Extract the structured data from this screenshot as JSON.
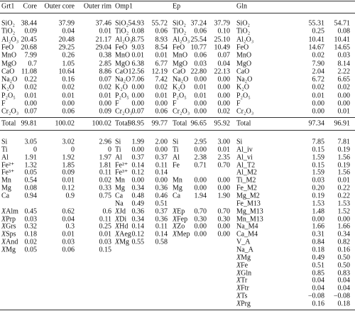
{
  "table": {
    "header": [
      "Grt1",
      "Core",
      "Outer core",
      "Outer rim",
      "Omp1",
      null,
      null,
      "Ep",
      null,
      null,
      "Gln",
      null,
      null
    ],
    "oxides": [
      [
        "SiO₂",
        "38.44",
        "37.99",
        "37.46",
        "SiO₂",
        "54.93",
        "55.72",
        "SiO₂",
        "37.24",
        "37.79",
        "SiO₂",
        "55.31",
        "54.71"
      ],
      [
        "TiO₂",
        "0.09",
        "0.04",
        "0.01",
        "TiO₂",
        "0.08",
        "0.06",
        "TiO₂",
        "0.06",
        "0.10",
        "TiO₂",
        "0.25",
        "0.08"
      ],
      [
        "Al₂O₃",
        "20.45",
        "20.48",
        "21.17",
        "Al₂O₃",
        "8.75",
        "8.93",
        "Al₂O₃",
        "25.54",
        "25.10",
        "Al₂O₃",
        "10.41",
        "10.41"
      ],
      [
        "FeO",
        "20.68",
        "29.25",
        "29.04",
        "FeO",
        "9.03",
        "8.54",
        "FeO",
        "10.77",
        "10.49",
        "FeO",
        "14.67",
        "14.65"
      ],
      [
        "MnO",
        "7.99",
        "0.26",
        "0.38",
        "MnO",
        "0.01",
        "0.01",
        "MnO",
        "0.06",
        "0.07",
        "MnO",
        "0.02",
        "0.03"
      ],
      [
        "MgO",
        "0.7",
        "1.05",
        "2.85",
        "MgO",
        "6.38",
        "6.77",
        "MgO",
        "0.03",
        "0.04",
        "MgO",
        "7.90",
        "8.14"
      ],
      [
        "CaO",
        "11.08",
        "10.64",
        "8.86",
        "CaO",
        "12.56",
        "12.19",
        "CaO",
        "22.80",
        "22.13",
        "CaO",
        "2.04",
        "2.22"
      ],
      [
        "Na₂O",
        "0.22",
        "0.16",
        "0.07",
        "Na₂O",
        "7.06",
        "7.42",
        "Na₂O",
        "0.00",
        "0.00",
        "Na₂O",
        "6.72",
        "6.65"
      ],
      [
        "K₂O",
        "0.02",
        "0.02",
        "0.02",
        "K₂O",
        "0.00",
        "0.02",
        "K₂O",
        "0.01",
        "0.00",
        "K₂O",
        "0.02",
        "0.02"
      ],
      [
        "P₂O₅",
        "0.01",
        "0.01",
        "0.01",
        "P₂O₅",
        "0.00",
        "0.01",
        "P₂O₅",
        "0.01",
        "0.00",
        "P₂O₅",
        "0.01",
        "0.00"
      ],
      [
        "F",
        "0.00",
        "0.00",
        "0.00",
        "F",
        "0.00",
        "0.00",
        "F",
        "0.00",
        "0.00",
        "F",
        "0.00",
        "0.00"
      ],
      [
        "Cr₂O₃",
        "0.07",
        "0.06",
        "0.09",
        "Cr₂O₃",
        "0.07",
        "0.06",
        "Cr₂O₃",
        "0.00",
        "0.02",
        "Cr₂O₃",
        "0.00",
        "0.01"
      ]
    ],
    "total": [
      "Total",
      "99.81",
      "100.02",
      "100.02",
      "Total",
      "98.95",
      "99.77",
      "Total",
      "96.65",
      "95.92",
      "Total",
      "97.34",
      "96.91"
    ],
    "cations": [
      [
        "Si",
        "3.05",
        "3.02",
        "2.96",
        "Si",
        "1.99",
        "2.00",
        "Si",
        "2.95",
        "3.00",
        "Si",
        "7.85",
        "7.81"
      ],
      [
        "Ti",
        "0",
        "0",
        "0",
        "Ti",
        "0.00",
        "0.00",
        "Ti",
        "0.00",
        "0.01",
        "Al_iv",
        "0.15",
        "0.19"
      ],
      [
        "Al",
        "1.91",
        "1.92",
        "1.97",
        "Al",
        "0.37",
        "0.37",
        "Al",
        "2.38",
        "2.35",
        "Al_vi",
        "1.59",
        "1.56"
      ],
      [
        "Fe²⁺",
        "1.32",
        "1.85",
        "1.81",
        "Fe²⁺",
        "0.14",
        "0.11",
        "Fe",
        "0.71",
        "0.70",
        "Al_T2",
        "0.15",
        "0.19"
      ],
      [
        "Fe³⁺",
        "0.05",
        "0.09",
        "0.11",
        "Fe³⁺",
        "0.12",
        "0.14",
        null,
        null,
        null,
        "Al_M2",
        "1.59",
        "1.56"
      ],
      [
        "Mn",
        "0.54",
        "0.01",
        "0.02",
        "Mn",
        "0.00",
        "0.00",
        "Mn",
        "0.00",
        "0.00",
        "Ti_M2",
        "0.03",
        "0.01"
      ],
      [
        "Mg",
        "0.08",
        "0.12",
        "0.33",
        "Mg",
        "0.34",
        "0.36",
        "Mg",
        "0.00",
        "0.00",
        "Fe_M2",
        "0.20",
        "0.22"
      ],
      [
        "Ca",
        "0.94",
        "0.9",
        "0.75",
        "Ca",
        "0.48",
        "0.46",
        "Ca",
        "1.94",
        "1.90",
        "Mg_M2",
        "0.19",
        "0.22"
      ],
      [
        null,
        null,
        null,
        null,
        "Na",
        "0.49",
        "0.51",
        null,
        null,
        null,
        "Fe_M13",
        "1.53",
        "1.53"
      ],
      [
        "XAlm",
        "0.45",
        "0.62",
        "0.6",
        "XJd",
        "0.36",
        "0.37",
        "XEp",
        "0.70",
        "0.70",
        "Mg_M13",
        "1.48",
        "1.52"
      ],
      [
        "XPrp",
        "0.03",
        "0.04",
        "0.11",
        "XDi",
        "0.34",
        "0.36",
        "XFep",
        "0.30",
        "0.30",
        "Mn_M13",
        "0.00",
        "0.00"
      ],
      [
        "XGrs",
        "0.32",
        "0.3",
        "0.25",
        "XHd",
        "0.14",
        "0.11",
        "XZo",
        "0.00",
        "0.00",
        "Na_M4",
        "1.66",
        "1.66"
      ],
      [
        "XSps",
        "0.18",
        "0.01",
        "0.01",
        "XAeg",
        "0.12",
        "0.14",
        "XMep",
        "0.00",
        "0.00",
        "Ca_M4",
        "0.31",
        "0.34"
      ],
      [
        "XAnd",
        "0.02",
        "0.03",
        "0.03",
        "XMg",
        "0.55",
        "0.58",
        null,
        null,
        null,
        "V_A",
        "0.84",
        "0.82"
      ],
      [
        "XMg",
        "0.05",
        "0.06",
        "0.15",
        null,
        null,
        null,
        null,
        null,
        null,
        "Na_A",
        "0.18",
        "0.16"
      ],
      [
        null,
        null,
        null,
        null,
        null,
        null,
        null,
        null,
        null,
        null,
        "XMg",
        "0.49",
        "0.50"
      ],
      [
        null,
        null,
        null,
        null,
        null,
        null,
        null,
        null,
        null,
        null,
        "XFe",
        "0.51",
        "0.50"
      ],
      [
        null,
        null,
        null,
        null,
        null,
        null,
        null,
        null,
        null,
        null,
        "XGln",
        "0.85",
        "0.83"
      ],
      [
        null,
        null,
        null,
        null,
        null,
        null,
        null,
        null,
        null,
        null,
        "XTr",
        "0.04",
        "0.04"
      ],
      [
        null,
        null,
        null,
        null,
        null,
        null,
        null,
        null,
        null,
        null,
        "XFtr",
        "0.04",
        "0.04"
      ],
      [
        null,
        null,
        null,
        null,
        null,
        null,
        null,
        null,
        null,
        null,
        "XTs",
        "−0.08",
        "−0.08"
      ],
      [
        null,
        null,
        null,
        null,
        null,
        null,
        null,
        null,
        null,
        null,
        "XPrg",
        "0.16",
        "0.18"
      ]
    ]
  }
}
